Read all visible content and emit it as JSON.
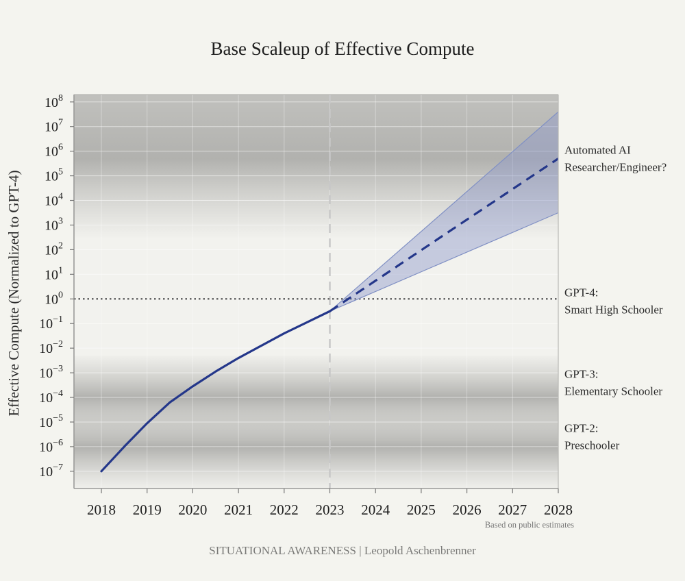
{
  "chart_data": {
    "type": "line",
    "title": "Base Scaleup of Effective Compute",
    "xlabel": "",
    "ylabel": "Effective Compute (Normalized to GPT-4)",
    "y_scale": "log",
    "xlim": [
      2017.4,
      2028
    ],
    "ylim_exponent": [
      -7.7,
      8.3
    ],
    "x_ticks": [
      "2018",
      "2019",
      "2020",
      "2021",
      "2022",
      "2023",
      "2024",
      "2025",
      "2026",
      "2027",
      "2028"
    ],
    "y_tick_exponents": [
      8,
      7,
      6,
      5,
      4,
      3,
      2,
      1,
      0,
      -1,
      -2,
      -3,
      -4,
      -5,
      -6,
      -7
    ],
    "grid": true,
    "colors": {
      "line": "#24378a",
      "band": "#8f9ac9",
      "band_edge": "#8090c4",
      "reference": "#666666",
      "divider": "#c8c8c8"
    },
    "series": [
      {
        "style": "solid",
        "points": [
          {
            "x": 2018.0,
            "exp": -7.0
          },
          {
            "x": 2018.5,
            "exp": -6.0
          },
          {
            "x": 2019.0,
            "exp": -5.05
          },
          {
            "x": 2019.5,
            "exp": -4.2
          },
          {
            "x": 2020.0,
            "exp": -3.55
          },
          {
            "x": 2020.5,
            "exp": -2.95
          },
          {
            "x": 2021.0,
            "exp": -2.4
          },
          {
            "x": 2021.5,
            "exp": -1.9
          },
          {
            "x": 2022.0,
            "exp": -1.4
          },
          {
            "x": 2022.5,
            "exp": -0.95
          },
          {
            "x": 2023.0,
            "exp": -0.5
          }
        ]
      },
      {
        "style": "dashed",
        "points": [
          {
            "x": 2023.0,
            "exp": -0.5
          },
          {
            "x": 2028.0,
            "exp": 5.7
          }
        ]
      }
    ],
    "band": {
      "x": [
        2023.0,
        2028.0
      ],
      "lower_exp": [
        -0.5,
        3.5
      ],
      "upper_exp": [
        -0.5,
        7.6
      ]
    },
    "shaded_ranges_exp": [
      [
        2.5,
        8.3
      ],
      [
        -5.7,
        -2.3
      ],
      [
        -7.7,
        -4.3
      ]
    ],
    "vertical_line_x": 2023,
    "reference_line_exp": 0,
    "annotations": [
      {
        "lines": [
          "Automated AI",
          "Researcher/Engineer?"
        ],
        "x": 2028,
        "exp": 5.9
      },
      {
        "lines": [
          "GPT-4:",
          "Smart High Schooler"
        ],
        "x": 2028,
        "exp": 0.1
      },
      {
        "lines": [
          "GPT-3:",
          "Elementary Schooler"
        ],
        "x": 2028,
        "exp": -3.2
      },
      {
        "lines": [
          "GPT-2:",
          "Preschooler"
        ],
        "x": 2028,
        "exp": -5.4
      }
    ],
    "source_note": "Based on public estimates",
    "credit": "SITUATIONAL AWARENESS | Leopold Aschenbrenner"
  }
}
